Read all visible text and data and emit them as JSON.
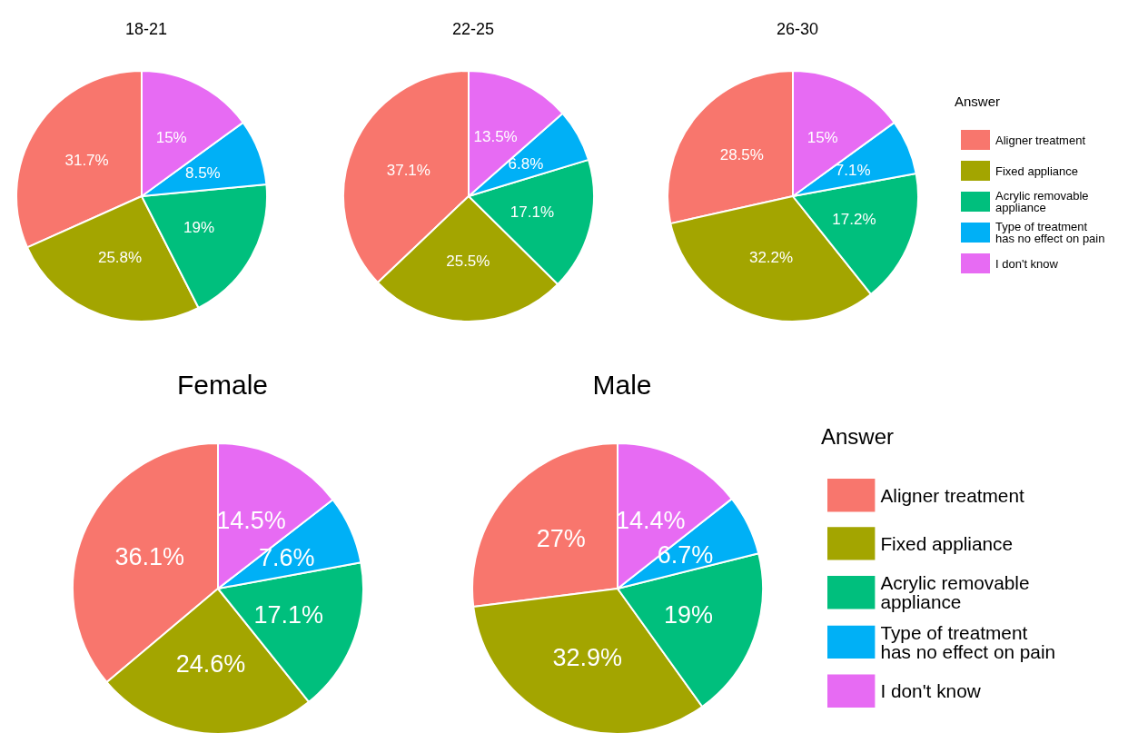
{
  "chart_data": [
    {
      "type": "pie",
      "title": "18-21",
      "categories": [
        null,
        null,
        null,
        null,
        null
      ],
      "values": [
        31.7,
        25.8,
        19,
        8.5,
        15
      ],
      "value_labels": [
        "31.7%",
        "25.8%",
        "19%",
        "8.5%",
        "15%"
      ],
      "colors": [
        "#f8766d",
        "#a3a500",
        "#00bf7d",
        "#00b0f6",
        "#e76bf3"
      ],
      "legend": false
    },
    {
      "type": "pie",
      "title": "22-25",
      "categories": [
        null,
        null,
        null,
        null,
        null
      ],
      "values": [
        37.1,
        25.5,
        17.1,
        6.8,
        13.5
      ],
      "value_labels": [
        "37.1%",
        "25.5%",
        "17.1%",
        "6.8%",
        "13.5%"
      ],
      "colors": [
        "#f8766d",
        "#a3a500",
        "#00bf7d",
        "#00b0f6",
        "#e76bf3"
      ],
      "legend": false
    },
    {
      "type": "pie",
      "title": "26-30",
      "categories": [
        "Aligner treatment",
        "Fixed appliance",
        "Acrylic removable appliance",
        "Type of treatment has no effect on pain",
        "I don't know"
      ],
      "values": [
        28.5,
        32.2,
        17.2,
        7.1,
        15
      ],
      "value_labels": [
        "28.5%",
        "32.2%",
        "17.2%",
        "7.1%",
        "15%"
      ],
      "colors": [
        "#f8766d",
        "#a3a500",
        "#00bf7d",
        "#00b0f6",
        "#e76bf3"
      ],
      "legend": "right",
      "legend_title": "Answer"
    },
    {
      "type": "pie",
      "title": "Female",
      "categories": [
        null,
        null,
        null,
        null,
        null
      ],
      "values": [
        36.1,
        24.6,
        17.1,
        7.6,
        14.5
      ],
      "value_labels": [
        "36.1%",
        "24.6%",
        "17.1%",
        "7.6%",
        "14.5%"
      ],
      "colors": [
        "#f8766d",
        "#a3a500",
        "#00bf7d",
        "#00b0f6",
        "#e76bf3"
      ],
      "legend": false
    },
    {
      "type": "pie",
      "title": "Male",
      "categories": [
        "Aligner treatment",
        "Fixed appliance",
        "Acrylic removable appliance",
        "Type of treatment has no effect on pain",
        "I don't know"
      ],
      "values": [
        27,
        32.9,
        19,
        6.7,
        14.4
      ],
      "value_labels": [
        "27%",
        "32.9%",
        "19%",
        "6.7%",
        "14.4%"
      ],
      "colors": [
        "#f8766d",
        "#a3a500",
        "#00bf7d",
        "#00b0f6",
        "#e76bf3"
      ],
      "legend": "right",
      "legend_title": "Answer"
    }
  ]
}
